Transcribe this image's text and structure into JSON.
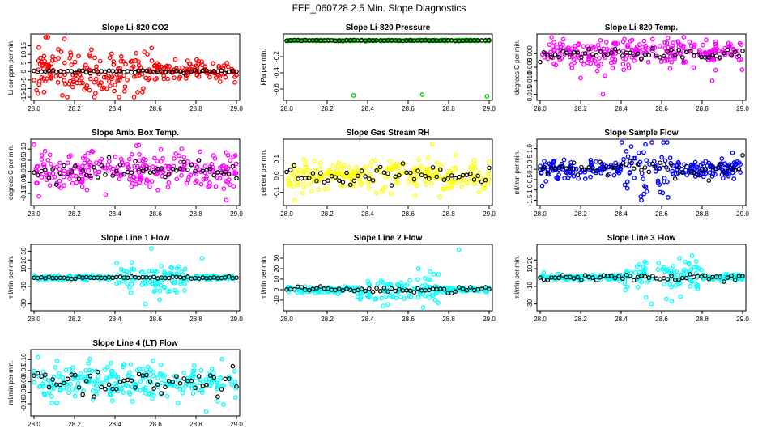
{
  "page_title": "FEF_060728  2.5 Min. Slope Diagnostics",
  "chart_data": [
    {
      "type": "scatter",
      "title": "Slope Li-820 CO2",
      "ylabel": "Li cor ppm per min.",
      "xlim": [
        28.0,
        29.0
      ],
      "ylim": [
        -15,
        20
      ],
      "yticks": [
        "-15",
        "-10",
        "-5",
        "0",
        "5",
        "10",
        "15"
      ],
      "xticks": [
        "28.0",
        "28.2",
        "28.4",
        "28.6",
        "28.8",
        "29.0"
      ],
      "color": "#ff0000",
      "spread": 3.2,
      "burst": [
        28.0,
        28.6,
        2.2
      ],
      "outliers": [
        [
          28.12,
          13
        ],
        [
          28.15,
          19
        ],
        [
          28.18,
          11
        ],
        [
          28.22,
          9
        ],
        [
          28.05,
          -12
        ],
        [
          28.14,
          -14
        ],
        [
          28.3,
          8
        ],
        [
          28.45,
          -9
        ],
        [
          28.56,
          10
        ]
      ],
      "black_spread": 0.4,
      "seed": 11
    },
    {
      "type": "scatter",
      "title": "Slope Li-820 Pressure",
      "ylabel": "kPa per min.",
      "xlim": [
        28.0,
        29.0
      ],
      "ylim": [
        -0.7,
        0.04
      ],
      "yticks": [
        "-0.6",
        "-0.4",
        "-0.2"
      ],
      "yvals": [
        -0.6,
        -0.4,
        -0.2
      ],
      "xticks": [
        "28.0",
        "28.2",
        "28.4",
        "28.6",
        "28.8",
        "29.0"
      ],
      "color": "#00cc00",
      "spread": 0.003,
      "burst": [
        28.0,
        28.0,
        1
      ],
      "outliers": [
        [
          28.33,
          -0.68
        ],
        [
          28.67,
          -0.67
        ],
        [
          28.99,
          -0.69
        ]
      ],
      "black_spread": 0.003,
      "seed": 23
    },
    {
      "type": "scatter",
      "title": "Slope Li-820 Temp.",
      "ylabel": "degrees C per min.",
      "xlim": [
        28.0,
        29.0
      ],
      "ylim": [
        -0.016,
        0.006
      ],
      "yticks": [
        "-0.015",
        "-0.010",
        "-0.005",
        "0.000"
      ],
      "yvals": [
        -0.015,
        -0.01,
        -0.005,
        0.0
      ],
      "xticks": [
        "28.0",
        "28.2",
        "28.4",
        "28.6",
        "28.8",
        "29.0"
      ],
      "color": "#ff00ff",
      "spread": 0.0025,
      "burst": [
        28.0,
        28.35,
        1.3
      ],
      "outliers": [
        [
          28.31,
          -0.015
        ],
        [
          28.82,
          0.005
        ],
        [
          28.2,
          -0.009
        ],
        [
          28.85,
          -0.01
        ]
      ],
      "black_spread": 0.001,
      "seed": 37
    },
    {
      "type": "scatter",
      "title": "Slope Amb. Box Temp.",
      "ylabel": "degrees C per min.",
      "xlim": [
        28.0,
        29.0
      ],
      "ylim": [
        -0.14,
        0.13
      ],
      "yticks": [
        "-0.10",
        "-0.05",
        "0.00",
        "0.05",
        "0.10"
      ],
      "yvals": [
        -0.1,
        -0.05,
        0.0,
        0.05,
        0.1
      ],
      "xticks": [
        "28.0",
        "28.2",
        "28.4",
        "28.6",
        "28.8",
        "29.0"
      ],
      "color": "#ff00ff",
      "spread": 0.045,
      "burst": [
        28.0,
        28.0,
        1
      ],
      "outliers": [
        [
          28.95,
          -0.13
        ],
        [
          28.0,
          0.12
        ]
      ],
      "black_spread": 0.025,
      "seed": 41
    },
    {
      "type": "scatter",
      "title": "Slope Gas Stream RH",
      "ylabel": "percent per min.",
      "xlim": [
        28.0,
        29.0
      ],
      "ylim": [
        -0.16,
        0.2
      ],
      "yticks": [
        "-0.1",
        "0.0",
        "0.1"
      ],
      "yvals": [
        -0.1,
        0.0,
        0.1
      ],
      "xticks": [
        "28.0",
        "28.2",
        "28.4",
        "28.6",
        "28.8",
        "29.0"
      ],
      "color": "#ffff00",
      "spread": 0.045,
      "burst": [
        28.0,
        28.0,
        1
      ],
      "outliers": [
        [
          28.72,
          0.19
        ],
        [
          28.04,
          -0.15
        ]
      ],
      "black_spread": 0.03,
      "seed": 53
    },
    {
      "type": "scatter",
      "title": "Slope Sample Flow",
      "ylabel": "ml/min per min.",
      "xlim": [
        28.0,
        29.0
      ],
      "ylim": [
        -1.6,
        1.3
      ],
      "yticks": [
        "-1.5",
        "-1.0",
        "-0.5",
        "0.0",
        "0.5",
        "1.0"
      ],
      "yvals": [
        -1.5,
        -1.0,
        -0.5,
        0.0,
        0.5,
        1.0
      ],
      "xticks": [
        "28.0",
        "28.2",
        "28.4",
        "28.6",
        "28.8",
        "29.0"
      ],
      "color": "#0000ff",
      "spread": 0.2,
      "burst": [
        28.4,
        28.65,
        3.5
      ],
      "outliers": [
        [
          28.52,
          1.2
        ],
        [
          28.5,
          -1.5
        ],
        [
          28.01,
          -0.8
        ],
        [
          28.45,
          1.1
        ],
        [
          28.95,
          0.8
        ]
      ],
      "black_spread": 0.2,
      "seed": 67
    },
    {
      "type": "scatter",
      "title": "Slope Line 1 Flow",
      "ylabel": "ml/min per min.",
      "xlim": [
        28.0,
        29.0
      ],
      "ylim": [
        -34,
        34
      ],
      "yticks": [
        "-30",
        "-10",
        "10",
        "20",
        "30"
      ],
      "yvals": [
        -30,
        -10,
        10,
        20,
        30
      ],
      "xticks": [
        "28.0",
        "28.2",
        "28.4",
        "28.6",
        "28.8",
        "29.0"
      ],
      "color": "#00ffff",
      "spread": 1.2,
      "burst": [
        28.4,
        28.75,
        7
      ],
      "outliers": [
        [
          28.58,
          33
        ],
        [
          28.55,
          -30
        ],
        [
          28.83,
          22
        ],
        [
          28.62,
          -25
        ]
      ],
      "black_spread": 0.6,
      "seed": 71
    },
    {
      "type": "scatter",
      "title": "Slope Line 2 Flow",
      "ylabel": "ml/min per min.",
      "xlim": [
        28.0,
        29.0
      ],
      "ylim": [
        -17,
        40
      ],
      "yticks": [
        "-10",
        "0",
        "10",
        "20",
        "30"
      ],
      "yvals": [
        -10,
        0,
        10,
        20,
        30
      ],
      "xticks": [
        "28.0",
        "28.2",
        "28.4",
        "28.6",
        "28.8",
        "29.0"
      ],
      "color": "#00ffff",
      "spread": 1.2,
      "burst": [
        28.35,
        28.75,
        5
      ],
      "outliers": [
        [
          28.85,
          38
        ],
        [
          28.65,
          20
        ],
        [
          28.5,
          -14
        ]
      ],
      "black_spread": 1.5,
      "seed": 83
    },
    {
      "type": "scatter",
      "title": "Slope Line 3 Flow",
      "ylabel": "ml/min per min.",
      "xlim": [
        28.0,
        29.0
      ],
      "ylim": [
        -34,
        34
      ],
      "yticks": [
        "-30",
        "-10",
        "10",
        "20"
      ],
      "yvals": [
        -30,
        -10,
        10,
        20
      ],
      "xticks": [
        "28.0",
        "28.2",
        "28.4",
        "28.6",
        "28.8",
        "29.0"
      ],
      "color": "#00ffff",
      "spread": 1.8,
      "burst": [
        28.4,
        28.8,
        6
      ],
      "outliers": [
        [
          28.75,
          25
        ],
        [
          28.55,
          -30
        ],
        [
          28.65,
          -27
        ]
      ],
      "black_spread": 2,
      "seed": 97
    },
    {
      "type": "scatter",
      "title": "Slope Line 4 (LT) Flow",
      "ylabel": "ml/min per min.",
      "xlim": [
        28.0,
        29.0
      ],
      "ylim": [
        -0.14,
        0.13
      ],
      "yticks": [
        "-0.10",
        "-0.05",
        "0.00",
        "0.05",
        "0.10"
      ],
      "yvals": [
        -0.1,
        -0.05,
        0.0,
        0.05,
        0.1
      ],
      "xticks": [
        "28.0",
        "28.2",
        "28.4",
        "28.6",
        "28.8",
        "29.0"
      ],
      "color": "#00ffff",
      "spread": 0.04,
      "burst": [
        28.0,
        28.0,
        1
      ],
      "outliers": [
        [
          28.85,
          -0.135
        ],
        [
          28.02,
          0.11
        ]
      ],
      "black_spread": 0.03,
      "seed": 101
    }
  ]
}
